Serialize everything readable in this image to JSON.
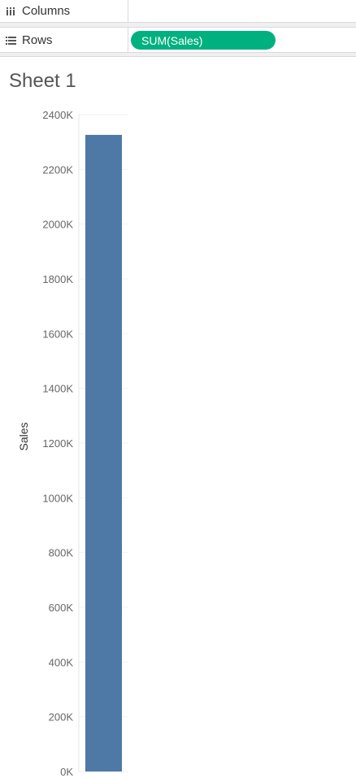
{
  "shelves": {
    "columns": {
      "label": "Columns",
      "icon": "columns-icon"
    },
    "rows": {
      "label": "Rows",
      "icon": "rows-icon",
      "pill": "SUM(Sales)",
      "pill_color": "#00b180"
    }
  },
  "sheet": {
    "title": "Sheet 1"
  },
  "chart_data": {
    "type": "bar",
    "categories": [
      ""
    ],
    "values": [
      2326
    ],
    "ylabel": "Sales",
    "ylim": [
      0,
      2400
    ],
    "yticks": [
      0,
      200,
      400,
      600,
      800,
      1000,
      1200,
      1400,
      1600,
      1800,
      2000,
      2200,
      2400
    ],
    "ytick_labels": [
      "0K",
      "200K",
      "400K",
      "600K",
      "800K",
      "1000K",
      "1200K",
      "1400K",
      "1600K",
      "1800K",
      "2000K",
      "2200K",
      "2400K"
    ],
    "bar_color": "#4e79a7",
    "grid": true
  }
}
